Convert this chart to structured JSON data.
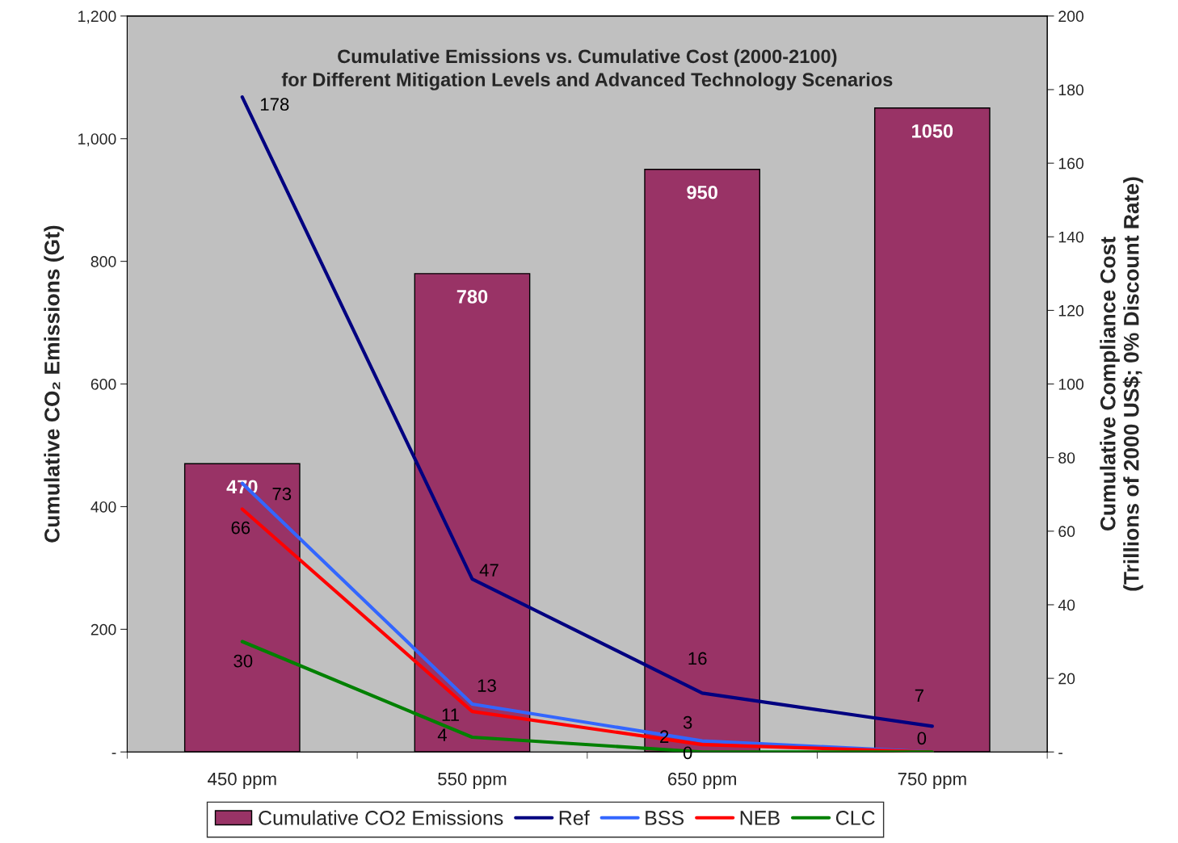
{
  "chart_data": {
    "type": "bar",
    "title": "Cumulative Emissions vs. Cumulative Cost (2000-2100)\nfor Different Mitigation Levels and Advanced Technology Scenarios",
    "ylabel": "Cumulative CO₂ Emissions (Gt)",
    "y2label": "Cumulative Compliance Cost\n(Trillions of 2000 US$; 0% Discount Rate)",
    "categories": [
      "450 ppm",
      "550 ppm",
      "650 ppm",
      "750 ppm"
    ],
    "series": [
      {
        "name": "Cumulative CO2 Emissions",
        "color": "#993366",
        "values": [
          470,
          780,
          950,
          1050
        ],
        "data_labels": true
      },
      {
        "name": "Ref",
        "type": "line",
        "axis": "y2",
        "color": "#000080",
        "values": [
          178,
          47,
          16,
          7
        ],
        "value_labels": [
          "178",
          "47",
          "16",
          "7"
        ]
      },
      {
        "name": "BSS",
        "type": "line",
        "axis": "y2",
        "color": "#3366ff",
        "values": [
          73,
          13,
          3,
          0
        ],
        "value_labels": [
          "73",
          "13",
          "3",
          "0"
        ]
      },
      {
        "name": "NEB",
        "type": "line",
        "axis": "y2",
        "color": "#ff0000",
        "values": [
          66,
          11,
          2,
          0
        ],
        "value_labels": [
          "66",
          "11",
          "2",
          null
        ]
      },
      {
        "name": "CLC",
        "type": "line",
        "axis": "y2",
        "color": "#008000",
        "values": [
          30,
          4,
          0,
          0
        ],
        "value_labels": [
          "30",
          "4",
          "0",
          null
        ]
      }
    ],
    "ylim": [
      0,
      1200
    ],
    "yticks": [
      {
        "value": 0,
        "label": "-"
      },
      200,
      400,
      600,
      800,
      {
        "value": 1000,
        "label": "1,000"
      },
      {
        "value": 1200,
        "label": "1,200"
      }
    ],
    "y2lim": [
      0,
      200
    ],
    "y2ticks": [
      {
        "value": 0,
        "label": "-"
      },
      20,
      40,
      60,
      80,
      100,
      120,
      140,
      160,
      180,
      200
    ],
    "grid": false,
    "legend": "bottom"
  }
}
